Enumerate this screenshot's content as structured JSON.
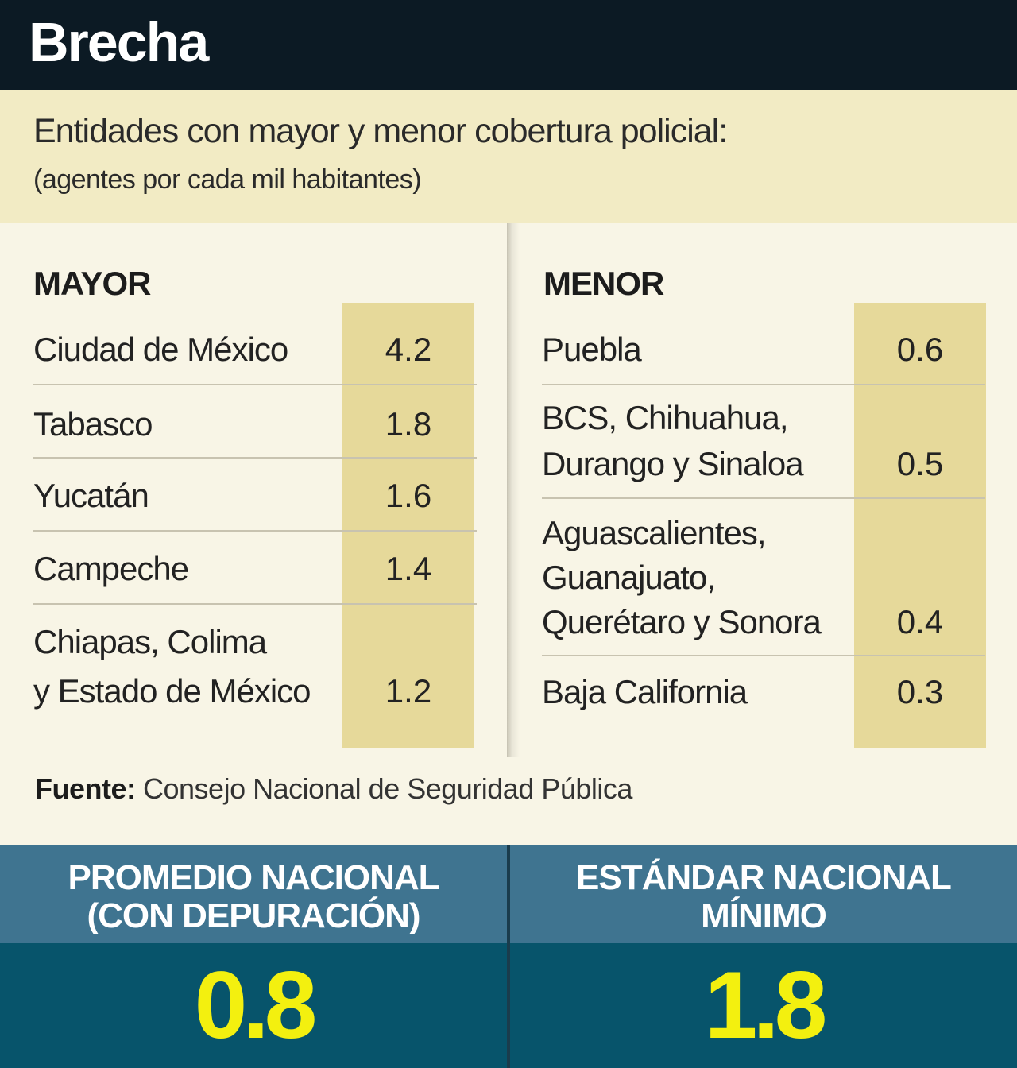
{
  "header": {
    "title": "Brecha"
  },
  "subhead": {
    "line1": "Entidades con mayor y menor cobertura policial:",
    "line2": "(agentes por cada mil habitantes)"
  },
  "mayor": {
    "title": "MAYOR",
    "rows": [
      {
        "name": "Ciudad de México",
        "value": "4.2"
      },
      {
        "name": "Tabasco",
        "value": "1.8"
      },
      {
        "name": "Yucatán",
        "value": "1.6"
      },
      {
        "name": "Campeche",
        "value": "1.4"
      },
      {
        "name_l1": "Chiapas, Colima",
        "name_l2": "y Estado de México",
        "value": "1.2"
      }
    ]
  },
  "menor": {
    "title": "MENOR",
    "rows": [
      {
        "name": "Puebla",
        "value": "0.6"
      },
      {
        "name_l1": "BCS, Chihuahua,",
        "name_l2": "Durango y Sinaloa",
        "value": "0.5"
      },
      {
        "name_l1": "Aguascalientes,",
        "name_l2": "Guanajuato,",
        "name_l3": "Querétaro y Sonora",
        "value": "0.4"
      },
      {
        "name": "Baja California",
        "value": "0.3"
      }
    ]
  },
  "source": {
    "label": "Fuente:",
    "text": "Consejo Nacional de Seguridad Pública"
  },
  "stats": [
    {
      "label_l1": "PROMEDIO NACIONAL",
      "label_l2": "(CON DEPURACIÓN)",
      "value": "0.8"
    },
    {
      "label_l1": "ESTÁNDAR NACIONAL",
      "label_l2": "MÍNIMO",
      "value": "1.8"
    }
  ],
  "colors": {
    "header_bg": "#0c1a24",
    "subhead_bg": "#f2ebc4",
    "value_column_bg": "#e6d99a",
    "stat_label_bg": "#3f7490",
    "stat_value_bg": "#07546b",
    "stat_value_text": "#f3f00f"
  }
}
